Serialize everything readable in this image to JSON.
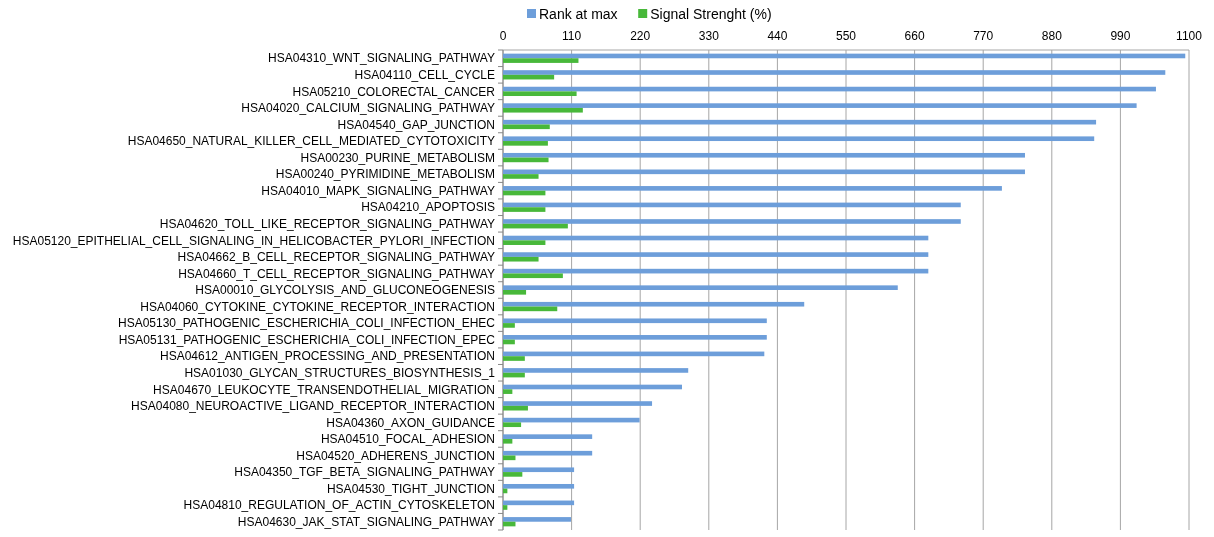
{
  "chart_data": {
    "type": "bar",
    "orientation": "horizontal",
    "categories": [
      "HSA04310_WNT_SIGNALING_PATHWAY",
      "HSA04110_CELL_CYCLE",
      "HSA05210_COLORECTAL_CANCER",
      "HSA04020_CALCIUM_SIGNALING_PATHWAY",
      "HSA04540_GAP_JUNCTION",
      "HSA04650_NATURAL_KILLER_CELL_MEDIATED_CYTOTOXICITY",
      "HSA00230_PURINE_METABOLISM",
      "HSA00240_PYRIMIDINE_METABOLISM",
      "HSA04010_MAPK_SIGNALING_PATHWAY",
      "HSA04210_APOPTOSIS",
      "HSA04620_TOLL_LIKE_RECEPTOR_SIGNALING_PATHWAY",
      "HSA05120_EPITHELIAL_CELL_SIGNALING_IN_HELICOBACTER_PYLORI_INFECTION",
      "HSA04662_B_CELL_RECEPTOR_SIGNALING_PATHWAY",
      "HSA04660_T_CELL_RECEPTOR_SIGNALING_PATHWAY",
      "HSA00010_GLYCOLYSIS_AND_GLUCONEOGENESIS",
      "HSA04060_CYTOKINE_CYTOKINE_RECEPTOR_INTERACTION",
      "HSA05130_PATHOGENIC_ESCHERICHIA_COLI_INFECTION_EHEC",
      "HSA05131_PATHOGENIC_ESCHERICHIA_COLI_INFECTION_EPEC",
      "HSA04612_ANTIGEN_PROCESSING_AND_PRESENTATION",
      "HSA01030_GLYCAN_STRUCTURES_BIOSYNTHESIS_1",
      "HSA04670_LEUKOCYTE_TRANSENDOTHELIAL_MIGRATION",
      "HSA04080_NEUROACTIVE_LIGAND_RECEPTOR_INTERACTION",
      "HSA04360_AXON_GUIDANCE",
      "HSA04510_FOCAL_ADHESION",
      "HSA04520_ADHERENS_JUNCTION",
      "HSA04350_TGF_BETA_SIGNALING_PATHWAY",
      "HSA04530_TIGHT_JUNCTION",
      "HSA04810_REGULATION_OF_ACTIN_CYTOSKELETON",
      "HSA04630_JAK_STAT_SIGNALING_PATHWAY"
    ],
    "series": [
      {
        "name": "Rank at max",
        "color": "#6d9eda",
        "values": [
          1094,
          1062,
          1047,
          1016,
          951,
          948,
          837,
          837,
          800,
          734,
          734,
          682,
          682,
          682,
          633,
          483,
          423,
          423,
          419,
          297,
          287,
          239,
          219,
          143,
          143,
          114,
          114,
          114,
          109
        ]
      },
      {
        "name": "Signal Strenght (%)",
        "color": "#48b83a",
        "values": [
          121,
          82,
          118,
          128,
          75,
          72,
          73,
          57,
          68,
          68,
          104,
          68,
          57,
          96,
          37,
          87,
          19,
          19,
          35,
          35,
          15,
          40,
          29,
          15,
          20,
          31,
          7,
          7,
          20
        ]
      }
    ],
    "xlim": [
      0,
      1100
    ],
    "xticks": [
      0,
      110,
      220,
      330,
      440,
      550,
      660,
      770,
      880,
      990,
      1100
    ],
    "grid": "x",
    "legend": "top"
  }
}
